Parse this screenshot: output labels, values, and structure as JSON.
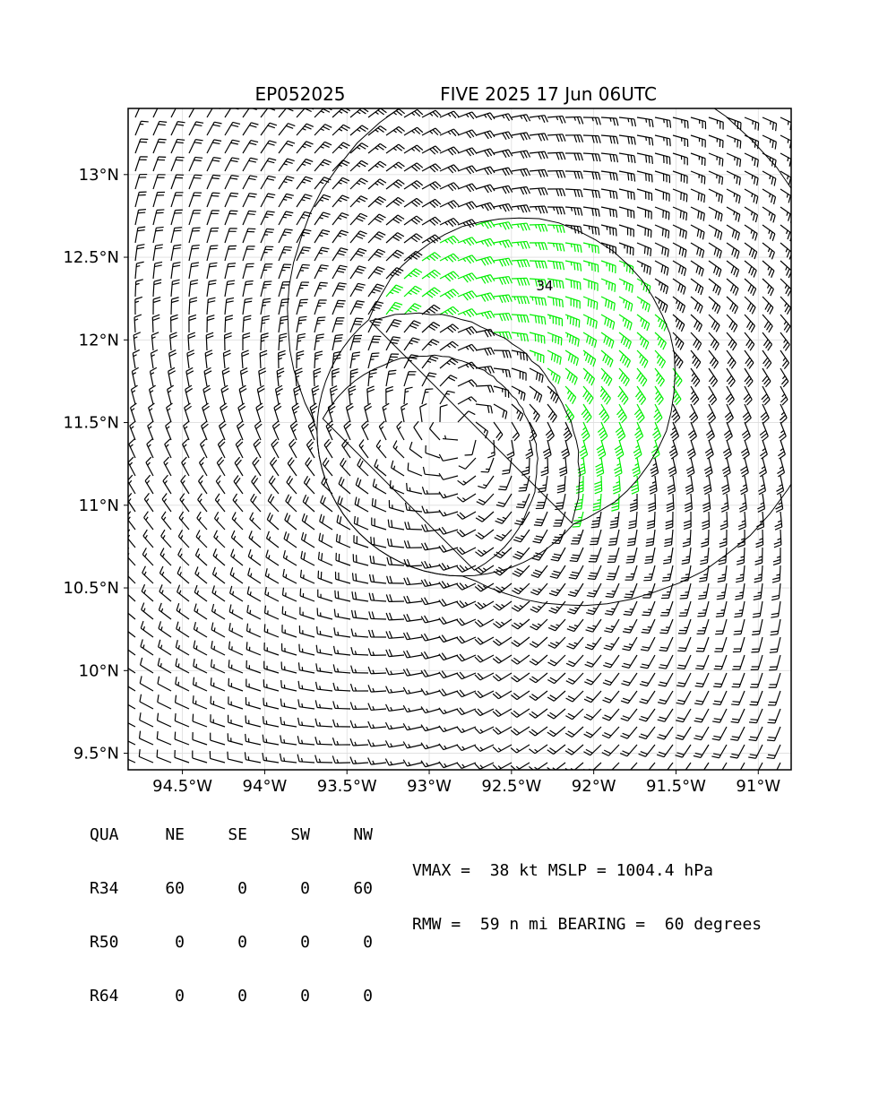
{
  "title_left": "EP052025",
  "title_right": "FIVE 2025 17 Jun 06UTC",
  "chart_data": {
    "type": "wind_barb_map",
    "lon_range": [
      -94.83,
      -90.8
    ],
    "lat_range": [
      9.4,
      13.4
    ],
    "x_ticks": [
      {
        "value": -94.5,
        "label": "94.5°W"
      },
      {
        "value": -94.0,
        "label": "94°W"
      },
      {
        "value": -93.5,
        "label": "93.5°W"
      },
      {
        "value": -93.0,
        "label": "93°W"
      },
      {
        "value": -92.5,
        "label": "92.5°W"
      },
      {
        "value": -92.0,
        "label": "92°W"
      },
      {
        "value": -91.5,
        "label": "91.5°W"
      },
      {
        "value": -91.0,
        "label": "91°W"
      }
    ],
    "y_ticks": [
      {
        "value": 9.5,
        "label": "9.5°N"
      },
      {
        "value": 10.0,
        "label": "10°N"
      },
      {
        "value": 10.5,
        "label": "10.5°N"
      },
      {
        "value": 11.0,
        "label": "11°N"
      },
      {
        "value": 11.5,
        "label": "11.5°N"
      },
      {
        "value": 12.0,
        "label": "12°N"
      },
      {
        "value": 12.5,
        "label": "12.5°N"
      },
      {
        "value": 13.0,
        "label": "13°N"
      }
    ],
    "grid": true,
    "center": {
      "lon": -92.8,
      "lat": 11.45
    },
    "rmw_nmi": 59,
    "contour_label": "34",
    "colors": {
      "weak": "#000000",
      "r34": "#00ee00",
      "r50": "#f0b020",
      "grid": "#dddddd"
    }
  },
  "stats": {
    "headers": [
      "QUA",
      "NE",
      "SE",
      "SW",
      "NW"
    ],
    "rows": [
      {
        "label": "R34",
        "values": [
          "60",
          "0",
          "0",
          "60"
        ]
      },
      {
        "label": "R50",
        "values": [
          "0",
          "0",
          "0",
          "0"
        ]
      },
      {
        "label": "R64",
        "values": [
          "0",
          "0",
          "0",
          "0"
        ]
      }
    ]
  },
  "info_line1": "VMAX =  38 kt MSLP = 1004.4 hPa",
  "info_line2": "RMW =  59 n mi BEARING =  60 degrees"
}
